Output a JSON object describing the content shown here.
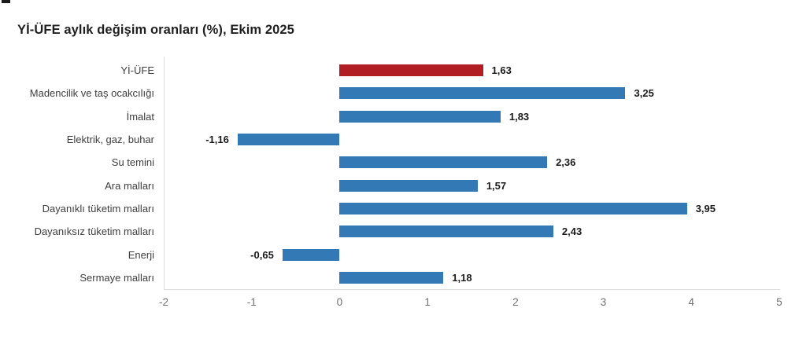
{
  "chart_data": {
    "type": "bar",
    "orientation": "horizontal",
    "title": "Yİ-ÜFE aylık değişim oranları (%), Ekim 2025",
    "categories": [
      "Yİ-ÜFE",
      "Madencilik ve taş ocakcılığı",
      "İmalat",
      "Elektrik, gaz, buhar",
      "Su temini",
      "Ara malları",
      "Dayanıklı tüketim malları",
      "Dayanıksız tüketim malları",
      "Enerji",
      "Sermaye malları"
    ],
    "values": [
      1.63,
      3.25,
      1.83,
      -1.16,
      2.36,
      1.57,
      3.95,
      2.43,
      -0.65,
      1.18
    ],
    "value_labels": [
      "1,63",
      "3,25",
      "1,83",
      "-1,16",
      "2,36",
      "1,57",
      "3,95",
      "2,43",
      "-0,65",
      "1,18"
    ],
    "highlight_index": 0,
    "xlim": [
      -2,
      5
    ],
    "x_ticks": [
      "-2",
      "-1",
      "0",
      "1",
      "2",
      "3",
      "4",
      "5"
    ],
    "grid": "off",
    "legend": "none",
    "xlabel": "",
    "ylabel": ""
  },
  "colors": {
    "highlight_bar": "#b01d22",
    "bar": "#3379b6",
    "axis_line": "#dcdcdc",
    "title_text": "#1f1f1f",
    "category_text": "#3d3d3d",
    "value_text": "#1a1a1a",
    "tick_text": "#6f6f6f"
  }
}
